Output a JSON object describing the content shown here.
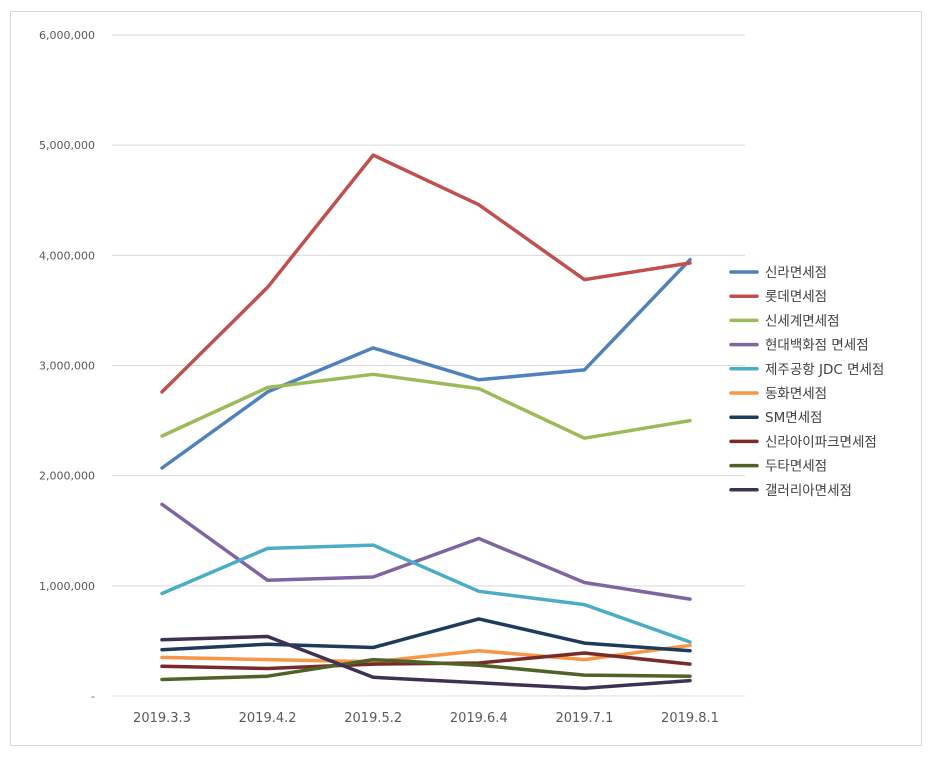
{
  "chart_data": {
    "type": "line",
    "title": "",
    "xlabel": "",
    "ylabel": "",
    "categories": [
      "2019.3.3",
      "2019.4.2",
      "2019.5.2",
      "2019.6.4",
      "2019.7.1",
      "2019.8.1"
    ],
    "ylim": [
      0,
      6000000
    ],
    "yticks": [
      0,
      1000000,
      2000000,
      3000000,
      4000000,
      5000000,
      6000000
    ],
    "ytick_labels": [
      "-",
      "1,000,000",
      "2,000,000",
      "3,000,000",
      "4,000,000",
      "5,000,000",
      "6,000,000"
    ],
    "grid": true,
    "legend": "right",
    "series": [
      {
        "name": "신라면세점",
        "color": "#4f81bd",
        "values": [
          2070000,
          2760000,
          3160000,
          2870000,
          2960000,
          3960000
        ]
      },
      {
        "name": "롯데면세점",
        "color": "#c0504d",
        "values": [
          2760000,
          3710000,
          4910000,
          4460000,
          3780000,
          3930000
        ]
      },
      {
        "name": "신세계면세점",
        "color": "#9bbb59",
        "values": [
          2360000,
          2800000,
          2920000,
          2790000,
          2340000,
          2500000
        ]
      },
      {
        "name": "현대백화점 면세점",
        "color": "#8064a2",
        "values": [
          1740000,
          1050000,
          1080000,
          1430000,
          1030000,
          880000
        ]
      },
      {
        "name": "제주공항 JDC 면세점",
        "color": "#4bacc6",
        "values": [
          930000,
          1340000,
          1370000,
          950000,
          830000,
          490000
        ]
      },
      {
        "name": "동화면세점",
        "color": "#f79646",
        "values": [
          350000,
          330000,
          310000,
          410000,
          330000,
          460000
        ]
      },
      {
        "name": "SM면세점",
        "color": "#1f3b5c",
        "values": [
          420000,
          470000,
          440000,
          700000,
          480000,
          410000
        ]
      },
      {
        "name": "신라아이파크면세점",
        "color": "#772c2a",
        "values": [
          270000,
          250000,
          290000,
          300000,
          390000,
          290000
        ]
      },
      {
        "name": "두타면세점",
        "color": "#4f6228",
        "values": [
          150000,
          180000,
          330000,
          280000,
          190000,
          180000
        ]
      },
      {
        "name": "갤러리아면세점",
        "color": "#3f3151",
        "values": [
          510000,
          540000,
          170000,
          120000,
          70000,
          140000
        ]
      }
    ]
  }
}
